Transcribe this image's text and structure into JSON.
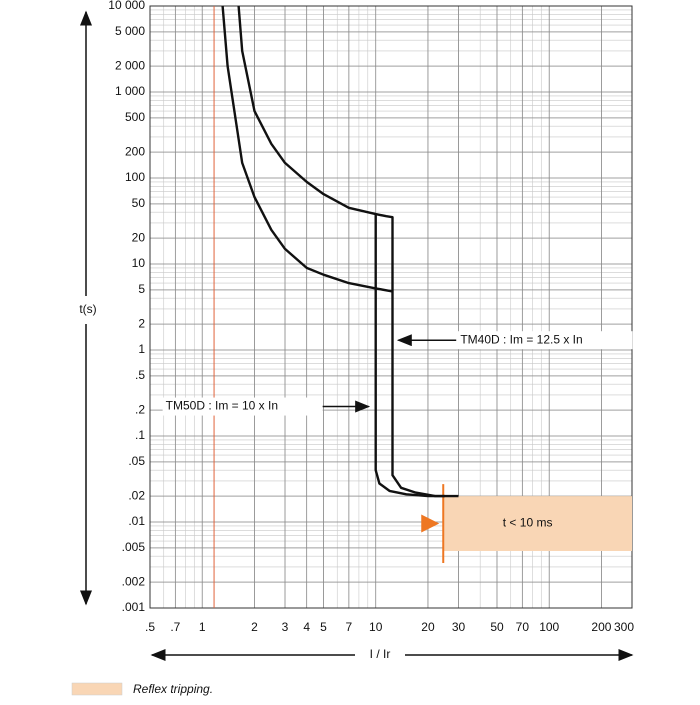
{
  "chart_data": {
    "type": "line",
    "log_x": true,
    "log_y": true,
    "grid": true,
    "minor_grid": true,
    "xlabel": "I / Ir",
    "ylabel": "t(s)",
    "xlim": [
      0.5,
      300
    ],
    "ylim": [
      0.001,
      10000
    ],
    "xticks": [
      {
        "value": 0.5,
        "label": ".5"
      },
      {
        "value": 0.7,
        "label": ".7"
      },
      1,
      2,
      3,
      4,
      5,
      7,
      10,
      20,
      30,
      50,
      70,
      100,
      200,
      300
    ],
    "yticks": [
      {
        "value": 10000,
        "label": "10 000"
      },
      {
        "value": 5000,
        "label": "5 000"
      },
      {
        "value": 2000,
        "label": "2 000"
      },
      {
        "value": 1000,
        "label": "1 000"
      },
      500,
      200,
      100,
      50,
      20,
      10,
      5,
      2,
      1,
      {
        "value": 0.5,
        "label": ".5"
      },
      {
        "value": 0.2,
        "label": ".2"
      },
      {
        "value": 0.1,
        "label": ".1"
      },
      {
        "value": 0.05,
        "label": ".05"
      },
      {
        "value": 0.02,
        "label": ".02"
      },
      {
        "value": 0.01,
        "label": ".01"
      },
      {
        "value": 0.005,
        "label": ".005"
      },
      {
        "value": 0.002,
        "label": ".002"
      },
      {
        "value": 0.001,
        "label": ".001"
      }
    ],
    "series": [
      {
        "color": "#111111",
        "x": [
          1.62,
          1.7,
          2,
          2.5,
          3,
          4,
          5,
          7,
          10,
          11.5,
          12.5,
          12.5,
          12.5,
          14,
          17,
          22,
          30
        ],
        "values": [
          10000,
          3000,
          600,
          250,
          150,
          90,
          65,
          45,
          38,
          36,
          35,
          1,
          0.035,
          0.025,
          0.022,
          0.02,
          0.02
        ]
      },
      {
        "color": "#111111",
        "x": [
          1.31,
          1.4,
          1.7,
          2,
          2.5,
          3,
          4,
          5,
          7,
          10,
          12.5
        ],
        "values": [
          10000,
          2000,
          150,
          60,
          25,
          15,
          9,
          7.5,
          6,
          5.2,
          4.8
        ]
      },
      {
        "color": "#111111",
        "x": [
          10,
          10,
          10,
          10.5,
          12,
          15,
          20,
          25
        ],
        "values": [
          38,
          1,
          0.04,
          0.028,
          0.023,
          0.021,
          0.02,
          0.02
        ]
      }
    ],
    "reference_line_x": 1.17,
    "reference_color": "#e0623a",
    "reflex_band": {
      "xlim": [
        24.5,
        300
      ],
      "ylim": [
        0.0046,
        0.02
      ],
      "color": "#f9d6b5",
      "edge_color": "#ee7722",
      "label": "t < 10 ms"
    },
    "annotations": [
      {
        "text": "TM40D : Im = 12.5 x In",
        "x": 12.8,
        "y": 1.3
      },
      {
        "text": "TM50D : Im = 10 x In",
        "x": 9.6,
        "y": 0.22
      }
    ],
    "legend": {
      "label": "Reflex tripping."
    }
  }
}
